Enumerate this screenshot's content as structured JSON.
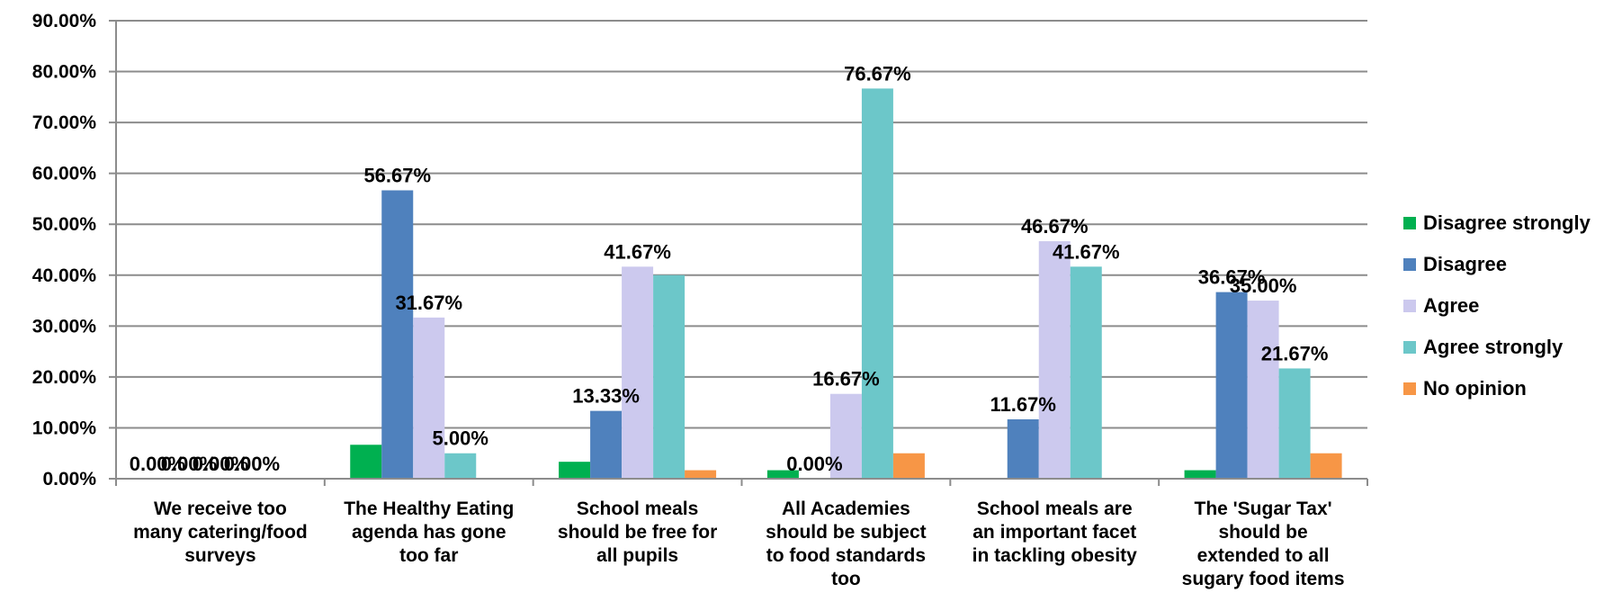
{
  "chart_data": {
    "type": "bar",
    "title": "",
    "xlabel": "",
    "ylabel": "",
    "ylim": [
      0,
      90
    ],
    "y_ticks": [
      "0.00%",
      "10.00%",
      "20.00%",
      "30.00%",
      "40.00%",
      "50.00%",
      "60.00%",
      "70.00%",
      "80.00%",
      "90.00%"
    ],
    "grid": true,
    "legend_position": "right",
    "categories": [
      [
        "We receive too",
        "many catering/food",
        "surveys"
      ],
      [
        "The Healthy Eating",
        "agenda has gone",
        "too far"
      ],
      [
        "School meals",
        "should be free for",
        "all pupils"
      ],
      [
        "All Academies",
        "should be subject",
        "to food standards",
        "too"
      ],
      [
        "School meals are",
        "an important facet",
        "in tackling obesity"
      ],
      [
        "The 'Sugar Tax'",
        "should be",
        "extended to all",
        "sugary food items"
      ]
    ],
    "series": [
      {
        "name": "Disagree strongly",
        "color": "#00b050",
        "values": [
          0.0,
          6.67,
          3.33,
          1.67,
          0.0,
          1.67
        ],
        "labels": [
          "0.00%",
          null,
          null,
          null,
          null,
          null
        ]
      },
      {
        "name": "Disagree",
        "color": "#4f81bd",
        "values": [
          0.0,
          56.67,
          13.33,
          0.0,
          11.67,
          36.67
        ],
        "labels": [
          "0.00%",
          "56.67%",
          "13.33%",
          "0.00%",
          "11.67%",
          "36.67%"
        ]
      },
      {
        "name": "Agree",
        "color": "#ccc9ee",
        "values": [
          0.0,
          31.67,
          41.67,
          16.67,
          46.67,
          35.0
        ],
        "labels": [
          "0.00%",
          "31.67%",
          "41.67%",
          "16.67%",
          "46.67%",
          "35.00%"
        ]
      },
      {
        "name": "Agree strongly",
        "color": "#6cc7c9",
        "values": [
          0.0,
          5.0,
          40.0,
          76.67,
          41.67,
          21.67
        ],
        "labels": [
          "0.00%",
          "5.00%",
          null,
          "76.67%",
          "41.67%",
          "21.67%"
        ]
      },
      {
        "name": "No opinion",
        "color": "#f79646",
        "values": [
          0.0,
          0.0,
          1.67,
          5.0,
          0.0,
          5.0
        ],
        "labels": [
          null,
          null,
          null,
          null,
          null,
          null
        ]
      }
    ]
  }
}
